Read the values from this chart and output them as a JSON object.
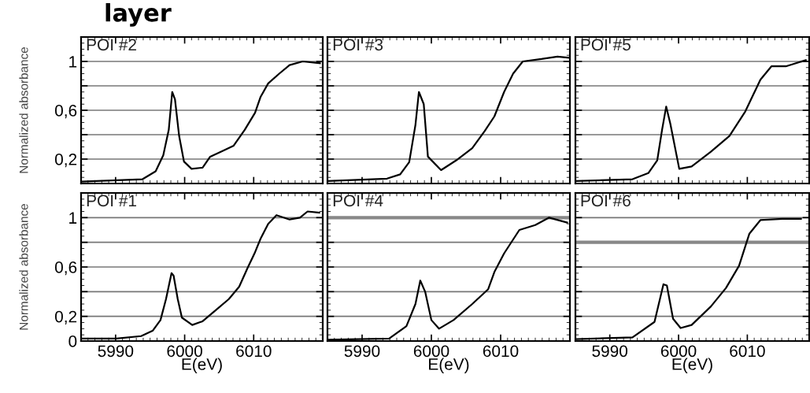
{
  "chart_data": [
    {
      "type": "line",
      "title": "POI #2",
      "ylabel": "Normalized absorbance",
      "annotations": [
        "layer"
      ],
      "tick_labels": "y",
      "grid": "y",
      "xlim": [
        5985,
        6020
      ],
      "ylim": [
        0,
        1.2
      ],
      "xticks": [
        5990,
        6000,
        6010
      ],
      "yticks": [
        {
          "value": 0.2,
          "label": "0,2"
        },
        {
          "value": 0.4,
          "label": null
        },
        {
          "value": 0.6,
          "label": "0,6"
        },
        {
          "value": 0.8,
          "label": null
        },
        1
      ],
      "series": [
        {
          "color": "#000000",
          "x": [
            5985.0,
            5993.9,
            5995.8,
            5996.9,
            5997.7,
            5998.2,
            5998.6,
            5999.2,
            5999.9,
            6001.0,
            6002.6,
            6003.7,
            6005.6,
            6007.1,
            6008.7,
            6010.2,
            6011.0,
            6012.1,
            6013.7,
            6015.2,
            6017.1,
            6019.6
          ],
          "values": [
            0.015,
            0.035,
            0.1,
            0.23,
            0.44,
            0.75,
            0.69,
            0.39,
            0.18,
            0.12,
            0.13,
            0.22,
            0.27,
            0.31,
            0.44,
            0.58,
            0.71,
            0.82,
            0.9,
            0.97,
            1.0,
            0.985
          ]
        }
      ]
    },
    {
      "type": "line",
      "title": "POI #3",
      "tick_labels": false,
      "grid": "y",
      "xlim": [
        5985,
        6020
      ],
      "ylim": [
        0,
        1.2
      ],
      "xticks": [
        5990,
        6000,
        6010
      ],
      "yticks": [
        0.2,
        0.4,
        0.6,
        0.8,
        1
      ],
      "series": [
        {
          "color": "#000000",
          "x": [
            5985.0,
            5993.6,
            5995.5,
            5996.8,
            5997.7,
            5998.2,
            5998.9,
            5999.5,
            6001.4,
            6003.6,
            6005.9,
            6007.7,
            6009.1,
            6010.5,
            6011.8,
            6013.2,
            6015.9,
            6018.2,
            6019.8
          ],
          "values": [
            0.02,
            0.04,
            0.075,
            0.175,
            0.48,
            0.75,
            0.65,
            0.22,
            0.11,
            0.19,
            0.29,
            0.43,
            0.55,
            0.75,
            0.9,
            1.0,
            1.02,
            1.04,
            1.03
          ]
        }
      ]
    },
    {
      "type": "line",
      "title": "POI #5",
      "tick_labels": false,
      "grid": "y",
      "xlim": [
        5985,
        6019
      ],
      "ylim": [
        0,
        1.2
      ],
      "xticks": [
        5990,
        6000,
        6010
      ],
      "yticks": [
        0.2,
        0.4,
        0.6,
        0.8,
        1
      ],
      "series": [
        {
          "color": "#000000",
          "x": [
            5985.1,
            5993.3,
            5995.6,
            5996.9,
            5997.6,
            5998.2,
            5998.8,
            6000.1,
            6001.9,
            6004.7,
            6007.4,
            6009.7,
            6011.9,
            6013.5,
            6015.6,
            6018.5
          ],
          "values": [
            0.02,
            0.035,
            0.085,
            0.19,
            0.44,
            0.63,
            0.49,
            0.12,
            0.14,
            0.26,
            0.39,
            0.59,
            0.85,
            0.96,
            0.96,
            1.01
          ]
        }
      ]
    },
    {
      "type": "line",
      "title": "POI #1",
      "ylabel": "Normalized absorbance",
      "xlabel": "E(eV)",
      "grid": "y",
      "xlim": [
        5985,
        6020
      ],
      "ylim": [
        0,
        1.2
      ],
      "xticks": [
        5990,
        6000,
        6010
      ],
      "yticks": [
        0,
        {
          "value": 0.2,
          "label": "0,2"
        },
        {
          "value": 0.4,
          "label": null
        },
        {
          "value": 0.6,
          "label": "0,6"
        },
        {
          "value": 0.8,
          "label": null
        },
        1
      ],
      "series": [
        {
          "color": "#000000",
          "x": [
            5985.0,
            5990.1,
            5993.7,
            5995.4,
            5996.5,
            5997.3,
            5998.1,
            5998.4,
            5999.0,
            5999.6,
            6001.1,
            6002.6,
            6004.5,
            6006.4,
            6007.9,
            6009.1,
            6010.2,
            6011.0,
            6012.1,
            6013.3,
            6015.2,
            6016.7,
            6017.8,
            6019.5
          ],
          "values": [
            0.02,
            0.02,
            0.04,
            0.085,
            0.17,
            0.34,
            0.55,
            0.53,
            0.34,
            0.19,
            0.13,
            0.16,
            0.25,
            0.34,
            0.44,
            0.59,
            0.72,
            0.83,
            0.95,
            1.02,
            0.985,
            1.0,
            1.05,
            1.04
          ]
        }
      ]
    },
    {
      "type": "line",
      "title": "POI #4",
      "xlabel": "E(eV)",
      "tick_labels": "x",
      "grid": "y",
      "xlim": [
        5985,
        6020
      ],
      "ylim": [
        0,
        1.2
      ],
      "xticks": [
        5990,
        6000,
        6010
      ],
      "yticks": [
        0,
        0.2,
        0.4,
        0.6,
        0.8,
        1
      ],
      "ref_lines": [
        {
          "axis": "y",
          "value": 1,
          "color": "#888888"
        }
      ],
      "series": [
        {
          "color": "#000000",
          "x": [
            5985.0,
            5993.9,
            5996.4,
            5997.7,
            5998.4,
            5999.1,
            6000.0,
            6001.1,
            6003.2,
            6005.9,
            6008.2,
            6009.1,
            6010.5,
            6012.7,
            6015.0,
            6017.0,
            6019.6
          ],
          "values": [
            0.01,
            0.02,
            0.12,
            0.3,
            0.49,
            0.4,
            0.17,
            0.1,
            0.17,
            0.3,
            0.42,
            0.56,
            0.71,
            0.9,
            0.94,
            1.0,
            0.96
          ]
        }
      ]
    },
    {
      "type": "line",
      "title": "POI #6",
      "xlabel": "E(eV)",
      "tick_labels": "x",
      "grid": "y",
      "xlim": [
        5985,
        6019
      ],
      "ylim": [
        0,
        1.2
      ],
      "xticks": [
        5990,
        6000,
        6010
      ],
      "yticks": [
        0,
        0.2,
        0.4,
        0.6,
        0.8,
        1
      ],
      "ref_lines": [
        {
          "axis": "y",
          "value": 0.8,
          "color": "#888888"
        }
      ],
      "series": [
        {
          "color": "#000000",
          "x": [
            5985.1,
            5993.3,
            5996.5,
            5997.8,
            5998.3,
            5999.2,
            6000.3,
            6001.9,
            6004.7,
            6006.9,
            6008.8,
            6010.3,
            6011.9,
            6015.1,
            6017.8
          ],
          "values": [
            0.015,
            0.03,
            0.155,
            0.46,
            0.45,
            0.18,
            0.105,
            0.13,
            0.28,
            0.43,
            0.61,
            0.87,
            0.98,
            0.99,
            0.99
          ]
        }
      ]
    }
  ]
}
